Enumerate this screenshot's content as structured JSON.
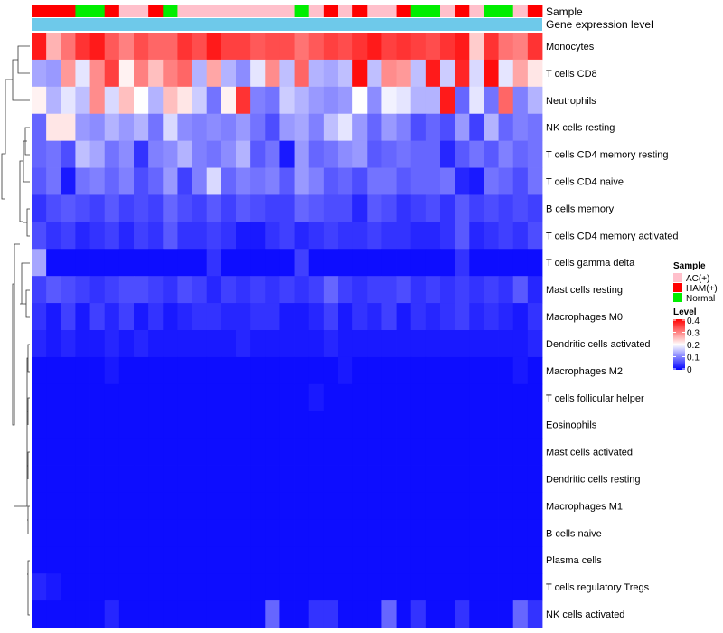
{
  "chart_data": {
    "type": "heatmap",
    "annotation_rows": [
      "Sample",
      "Gene expression level"
    ],
    "row_labels": [
      "Monocytes",
      "T cells CD8",
      "Neutrophils",
      "NK cells resting",
      "T cells CD4 memory resting",
      "T cells CD4 naive",
      "B cells memory",
      "T cells CD4 memory activated",
      "T cells gamma delta",
      "Mast cells resting",
      "Macrophages M0",
      "Dendritic cells activated",
      "Macrophages M2",
      "T cells follicular helper",
      "Eosinophils",
      "Mast cells activated",
      "Dendritic cells resting",
      "Macrophages M1",
      "B cells naive",
      "Plasma cells",
      "T cells regulatory  Tregs",
      "NK cells activated"
    ],
    "sample_groups": [
      "HAM",
      "HAM",
      "HAM",
      "Normal",
      "Normal",
      "HAM",
      "AC",
      "AC",
      "HAM",
      "Normal",
      "AC",
      "AC",
      "AC",
      "AC",
      "AC",
      "AC",
      "AC",
      "AC",
      "Normal",
      "AC",
      "HAM",
      "AC",
      "HAM",
      "AC",
      "AC",
      "HAM",
      "Normal",
      "Normal",
      "AC",
      "HAM",
      "AC",
      "Normal",
      "Normal",
      "AC",
      "HAM"
    ],
    "values": [
      [
        0.38,
        0.26,
        0.31,
        0.36,
        0.38,
        0.33,
        0.3,
        0.34,
        0.32,
        0.32,
        0.36,
        0.34,
        0.38,
        0.35,
        0.35,
        0.33,
        0.34,
        0.34,
        0.31,
        0.33,
        0.35,
        0.34,
        0.36,
        0.38,
        0.35,
        0.36,
        0.35,
        0.34,
        0.36,
        0.38,
        0.24,
        0.36,
        0.31,
        0.3,
        0.36
      ],
      [
        0.13,
        0.12,
        0.28,
        0.18,
        0.29,
        0.35,
        0.21,
        0.3,
        0.25,
        0.3,
        0.32,
        0.14,
        0.27,
        0.14,
        0.11,
        0.18,
        0.29,
        0.15,
        0.32,
        0.14,
        0.13,
        0.15,
        0.39,
        0.15,
        0.29,
        0.28,
        0.15,
        0.38,
        0.16,
        0.37,
        0.17,
        0.39,
        0.18,
        0.27,
        0.22
      ],
      [
        0.21,
        0.14,
        0.18,
        0.15,
        0.29,
        0.17,
        0.25,
        0.2,
        0.14,
        0.25,
        0.22,
        0.16,
        0.09,
        0.21,
        0.36,
        0.1,
        0.09,
        0.16,
        0.14,
        0.12,
        0.11,
        0.12,
        0.2,
        0.11,
        0.19,
        0.18,
        0.14,
        0.14,
        0.38,
        0.08,
        0.18,
        0.09,
        0.32,
        0.1,
        0.14
      ],
      [
        0.08,
        0.22,
        0.22,
        0.12,
        0.11,
        0.14,
        0.12,
        0.14,
        0.09,
        0.17,
        0.11,
        0.1,
        0.11,
        0.1,
        0.12,
        0.09,
        0.06,
        0.12,
        0.13,
        0.1,
        0.15,
        0.18,
        0.12,
        0.08,
        0.12,
        0.1,
        0.06,
        0.08,
        0.06,
        0.12,
        0.05,
        0.14,
        0.08,
        0.1,
        0.09
      ],
      [
        0.08,
        0.09,
        0.06,
        0.15,
        0.13,
        0.09,
        0.11,
        0.04,
        0.1,
        0.11,
        0.14,
        0.1,
        0.09,
        0.11,
        0.14,
        0.07,
        0.09,
        0.02,
        0.12,
        0.08,
        0.09,
        0.11,
        0.12,
        0.07,
        0.08,
        0.09,
        0.08,
        0.08,
        0.03,
        0.07,
        0.09,
        0.07,
        0.1,
        0.08,
        0.09
      ],
      [
        0.07,
        0.09,
        0.02,
        0.09,
        0.1,
        0.08,
        0.1,
        0.06,
        0.08,
        0.12,
        0.05,
        0.1,
        0.17,
        0.08,
        0.1,
        0.09,
        0.1,
        0.07,
        0.12,
        0.1,
        0.07,
        0.08,
        0.06,
        0.09,
        0.09,
        0.07,
        0.08,
        0.08,
        0.09,
        0.03,
        0.02,
        0.09,
        0.08,
        0.06,
        0.09
      ],
      [
        0.04,
        0.06,
        0.07,
        0.06,
        0.05,
        0.07,
        0.05,
        0.06,
        0.05,
        0.08,
        0.06,
        0.05,
        0.07,
        0.05,
        0.07,
        0.06,
        0.05,
        0.05,
        0.08,
        0.07,
        0.06,
        0.06,
        0.03,
        0.07,
        0.06,
        0.04,
        0.05,
        0.06,
        0.04,
        0.07,
        0.05,
        0.06,
        0.05,
        0.06,
        0.05
      ],
      [
        0.06,
        0.04,
        0.05,
        0.03,
        0.04,
        0.05,
        0.03,
        0.05,
        0.04,
        0.07,
        0.04,
        0.04,
        0.05,
        0.04,
        0.02,
        0.02,
        0.04,
        0.05,
        0.03,
        0.04,
        0.05,
        0.04,
        0.04,
        0.05,
        0.04,
        0.04,
        0.03,
        0.03,
        0.04,
        0.07,
        0.03,
        0.04,
        0.05,
        0.04,
        0.06
      ],
      [
        0.13,
        0.01,
        0.01,
        0.01,
        0.01,
        0.01,
        0.01,
        0.01,
        0.01,
        0.01,
        0.01,
        0.01,
        0.04,
        0.01,
        0.01,
        0.01,
        0.01,
        0.01,
        0.05,
        0.01,
        0.01,
        0.01,
        0.01,
        0.01,
        0.01,
        0.01,
        0.01,
        0.01,
        0.01,
        0.04,
        0.01,
        0.01,
        0.01,
        0.01,
        0.01
      ],
      [
        0.05,
        0.07,
        0.06,
        0.05,
        0.04,
        0.05,
        0.06,
        0.06,
        0.05,
        0.04,
        0.06,
        0.05,
        0.03,
        0.05,
        0.04,
        0.05,
        0.04,
        0.05,
        0.04,
        0.05,
        0.08,
        0.05,
        0.04,
        0.05,
        0.05,
        0.06,
        0.04,
        0.05,
        0.04,
        0.05,
        0.04,
        0.05,
        0.04,
        0.07,
        0.03
      ],
      [
        0.04,
        0.02,
        0.05,
        0.02,
        0.05,
        0.03,
        0.05,
        0.02,
        0.04,
        0.02,
        0.03,
        0.04,
        0.04,
        0.03,
        0.03,
        0.04,
        0.04,
        0.02,
        0.02,
        0.03,
        0.05,
        0.02,
        0.04,
        0.03,
        0.05,
        0.02,
        0.04,
        0.03,
        0.04,
        0.05,
        0.03,
        0.04,
        0.03,
        0.02,
        0.04
      ],
      [
        0.03,
        0.02,
        0.03,
        0.02,
        0.02,
        0.03,
        0.02,
        0.03,
        0.02,
        0.02,
        0.02,
        0.02,
        0.02,
        0.02,
        0.03,
        0.02,
        0.02,
        0.02,
        0.02,
        0.02,
        0.03,
        0.02,
        0.02,
        0.02,
        0.02,
        0.02,
        0.02,
        0.02,
        0.02,
        0.02,
        0.02,
        0.02,
        0.02,
        0.02,
        0.03
      ],
      [
        0.01,
        0.01,
        0.01,
        0.01,
        0.01,
        0.02,
        0.01,
        0.01,
        0.01,
        0.01,
        0.01,
        0.01,
        0.01,
        0.01,
        0.01,
        0.01,
        0.01,
        0.01,
        0.01,
        0.01,
        0.01,
        0.02,
        0.01,
        0.01,
        0.01,
        0.01,
        0.01,
        0.01,
        0.01,
        0.01,
        0.01,
        0.01,
        0.01,
        0.02,
        0.01
      ],
      [
        0.01,
        0.01,
        0.01,
        0.01,
        0.01,
        0.01,
        0.01,
        0.01,
        0.01,
        0.01,
        0.01,
        0.01,
        0.01,
        0.01,
        0.01,
        0.01,
        0.01,
        0.01,
        0.01,
        0.02,
        0.01,
        0.01,
        0.01,
        0.01,
        0.01,
        0.01,
        0.01,
        0.01,
        0.01,
        0.01,
        0.01,
        0.01,
        0.01,
        0.01,
        0.01
      ],
      [
        0.01,
        0.01,
        0.01,
        0.01,
        0.01,
        0.01,
        0.01,
        0.01,
        0.01,
        0.01,
        0.01,
        0.01,
        0.01,
        0.01,
        0.01,
        0.01,
        0.01,
        0.01,
        0.01,
        0.01,
        0.01,
        0.01,
        0.01,
        0.01,
        0.01,
        0.01,
        0.01,
        0.01,
        0.01,
        0.01,
        0.01,
        0.01,
        0.01,
        0.01,
        0.01
      ],
      [
        0.01,
        0.01,
        0.01,
        0.01,
        0.01,
        0.01,
        0.01,
        0.01,
        0.01,
        0.01,
        0.01,
        0.01,
        0.01,
        0.01,
        0.01,
        0.01,
        0.01,
        0.01,
        0.01,
        0.01,
        0.01,
        0.01,
        0.01,
        0.01,
        0.01,
        0.01,
        0.01,
        0.01,
        0.01,
        0.01,
        0.01,
        0.01,
        0.01,
        0.01,
        0.01
      ],
      [
        0.01,
        0.01,
        0.01,
        0.01,
        0.01,
        0.01,
        0.01,
        0.01,
        0.01,
        0.01,
        0.01,
        0.01,
        0.01,
        0.01,
        0.01,
        0.01,
        0.01,
        0.01,
        0.01,
        0.01,
        0.01,
        0.01,
        0.01,
        0.01,
        0.01,
        0.01,
        0.01,
        0.01,
        0.01,
        0.01,
        0.01,
        0.01,
        0.01,
        0.01,
        0.01
      ],
      [
        0.01,
        0.01,
        0.01,
        0.01,
        0.01,
        0.01,
        0.01,
        0.01,
        0.01,
        0.01,
        0.01,
        0.01,
        0.01,
        0.01,
        0.01,
        0.01,
        0.01,
        0.01,
        0.01,
        0.01,
        0.01,
        0.01,
        0.01,
        0.01,
        0.01,
        0.01,
        0.01,
        0.01,
        0.01,
        0.01,
        0.01,
        0.01,
        0.01,
        0.01,
        0.01
      ],
      [
        0.01,
        0.01,
        0.01,
        0.01,
        0.01,
        0.01,
        0.01,
        0.01,
        0.01,
        0.01,
        0.01,
        0.01,
        0.01,
        0.01,
        0.01,
        0.01,
        0.01,
        0.01,
        0.01,
        0.01,
        0.01,
        0.01,
        0.01,
        0.01,
        0.01,
        0.01,
        0.01,
        0.01,
        0.01,
        0.01,
        0.01,
        0.01,
        0.01,
        0.01,
        0.01
      ],
      [
        0.01,
        0.01,
        0.01,
        0.01,
        0.01,
        0.01,
        0.01,
        0.01,
        0.01,
        0.01,
        0.01,
        0.01,
        0.01,
        0.01,
        0.01,
        0.01,
        0.01,
        0.01,
        0.01,
        0.01,
        0.01,
        0.01,
        0.01,
        0.01,
        0.01,
        0.01,
        0.01,
        0.01,
        0.01,
        0.01,
        0.01,
        0.01,
        0.01,
        0.01,
        0.01
      ],
      [
        0.03,
        0.02,
        0.01,
        0.01,
        0.01,
        0.01,
        0.01,
        0.01,
        0.01,
        0.01,
        0.01,
        0.01,
        0.01,
        0.01,
        0.01,
        0.01,
        0.01,
        0.01,
        0.01,
        0.01,
        0.01,
        0.01,
        0.01,
        0.01,
        0.01,
        0.01,
        0.01,
        0.01,
        0.01,
        0.01,
        0.01,
        0.01,
        0.01,
        0.01,
        0.01
      ],
      [
        0.01,
        0.01,
        0.01,
        0.01,
        0.01,
        0.03,
        0.01,
        0.01,
        0.01,
        0.01,
        0.01,
        0.01,
        0.01,
        0.01,
        0.01,
        0.01,
        0.08,
        0.01,
        0.01,
        0.04,
        0.04,
        0.01,
        0.01,
        0.01,
        0.08,
        0.01,
        0.04,
        0.01,
        0.01,
        0.04,
        0.01,
        0.01,
        0.01,
        0.08,
        0.04
      ]
    ],
    "legend": {
      "sample_title": "Sample",
      "sample_entries": [
        {
          "key": "AC",
          "label": "AC(+)",
          "color": "#ffc0cb"
        },
        {
          "key": "HAM",
          "label": "HAM(+)",
          "color": "#ff0000"
        },
        {
          "key": "Normal",
          "label": "Normal",
          "color": "#00ee00"
        }
      ],
      "level_title": "Level",
      "level_ticks": [
        "0.4",
        "0.3",
        "0.2",
        "0.1",
        "0"
      ],
      "level_range": [
        0,
        0.4
      ]
    },
    "colors": {
      "low": "#0000ff",
      "mid": "#ffffff",
      "high": "#ff0000",
      "gene_expression_bar": "#6ec9ea"
    }
  }
}
